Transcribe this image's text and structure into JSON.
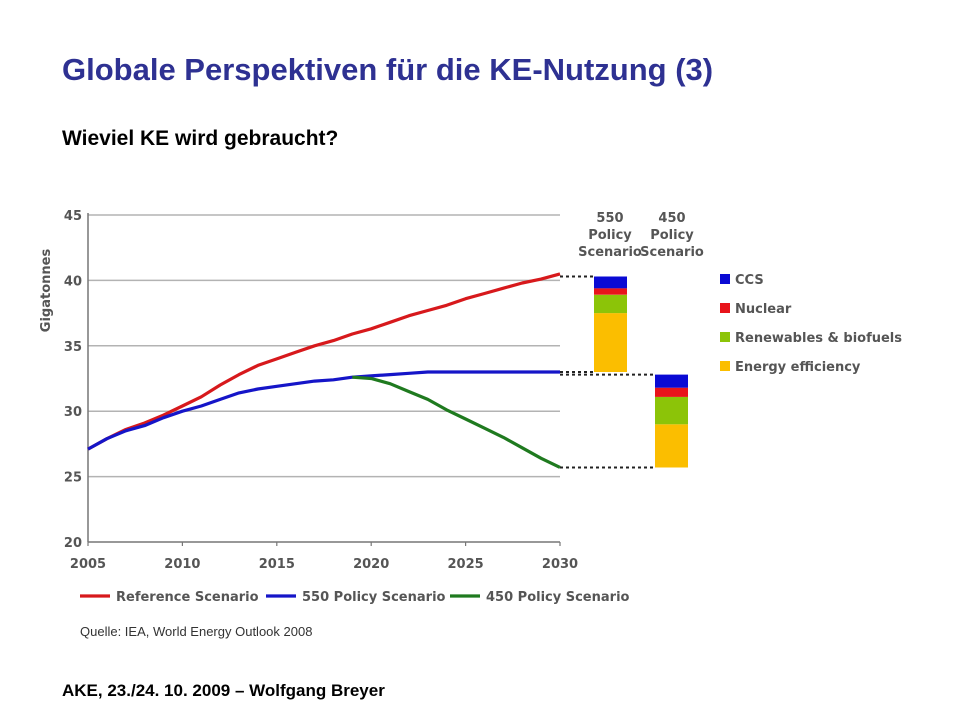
{
  "slide": {
    "title": "Globale Perspektiven für die KE-Nutzung (3)",
    "subtitle": "Wieviel KE wird gebraucht?",
    "source": "Quelle: IEA, World Energy Outlook 2008",
    "footer": "AKE, 23./24. 10. 2009 – Wolfgang Breyer"
  },
  "chart_data": {
    "type": "line",
    "title": "",
    "xlabel": "",
    "ylabel": "Gigatonnes",
    "xlim": [
      2005,
      2030
    ],
    "ylim": [
      20,
      45
    ],
    "x_ticks": [
      "2005",
      "2010",
      "2015",
      "2020",
      "2025",
      "2030"
    ],
    "y_ticks": [
      "20",
      "25",
      "30",
      "35",
      "40",
      "45"
    ],
    "grid": "horizontal",
    "legend_position": "bottom",
    "colors": {
      "reference": "#d7191c",
      "p550": "#1515c8",
      "p450": "#1f7a1f"
    },
    "series": [
      {
        "name": "Reference Scenario",
        "color": "#d7191c",
        "x": [
          2005,
          2006,
          2007,
          2008,
          2009,
          2010,
          2011,
          2012,
          2013,
          2014,
          2015,
          2016,
          2017,
          2018,
          2019,
          2020,
          2021,
          2022,
          2023,
          2024,
          2025,
          2026,
          2027,
          2028,
          2029,
          2030
        ],
        "y": [
          27.1,
          27.9,
          28.6,
          29.1,
          29.7,
          30.4,
          31.1,
          32.0,
          32.8,
          33.5,
          34.0,
          34.5,
          35.0,
          35.4,
          35.9,
          36.3,
          36.8,
          37.3,
          37.7,
          38.1,
          38.6,
          39.0,
          39.4,
          39.8,
          40.1,
          40.5
        ]
      },
      {
        "name": "550 Policy Scenario",
        "color": "#1515c8",
        "x": [
          2005,
          2006,
          2007,
          2008,
          2009,
          2010,
          2011,
          2012,
          2013,
          2014,
          2015,
          2016,
          2017,
          2018,
          2019,
          2020,
          2021,
          2022,
          2023,
          2024,
          2025,
          2026,
          2027,
          2028,
          2029,
          2030
        ],
        "y": [
          27.1,
          27.9,
          28.5,
          28.9,
          29.5,
          30.0,
          30.4,
          30.9,
          31.4,
          31.7,
          31.9,
          32.1,
          32.3,
          32.4,
          32.6,
          32.7,
          32.8,
          32.9,
          33.0,
          33.0,
          33.0,
          33.0,
          33.0,
          33.0,
          33.0,
          33.0
        ]
      },
      {
        "name": "450 Policy Scenario",
        "color": "#1f7a1f",
        "x": [
          2019,
          2020,
          2021,
          2022,
          2023,
          2024,
          2025,
          2026,
          2027,
          2028,
          2029,
          2030
        ],
        "y": [
          32.6,
          32.5,
          32.1,
          31.5,
          30.9,
          30.1,
          29.4,
          28.7,
          28.0,
          27.2,
          26.4,
          25.7
        ]
      }
    ],
    "bars": [
      {
        "label_lines": [
          "550",
          "Policy",
          "Scenario"
        ],
        "x_position": "right of 2030",
        "bottom": 33.0,
        "segments": [
          {
            "name": "Energy efficiency",
            "value": 4.5
          },
          {
            "name": "Renewables & biofuels",
            "value": 1.4
          },
          {
            "name": "Nuclear",
            "value": 0.5
          },
          {
            "name": "CCS",
            "value": 0.9
          }
        ]
      },
      {
        "label_lines": [
          "450",
          "Policy",
          "Scenario"
        ],
        "x_position": "right of 2030",
        "bottom": 25.7,
        "segments": [
          {
            "name": "Energy efficiency",
            "value": 3.3
          },
          {
            "name": "Renewables & biofuels",
            "value": 2.1
          },
          {
            "name": "Nuclear",
            "value": 0.7
          },
          {
            "name": "CCS",
            "value": 1.0
          }
        ]
      }
    ],
    "bar_legend": [
      {
        "name": "CCS",
        "color": "#0a0ad4"
      },
      {
        "name": "Nuclear",
        "color": "#e8141b"
      },
      {
        "name": "Renewables & biofuels",
        "color": "#8cc408"
      },
      {
        "name": "Energy efficiency",
        "color": "#fbbe00"
      }
    ]
  }
}
